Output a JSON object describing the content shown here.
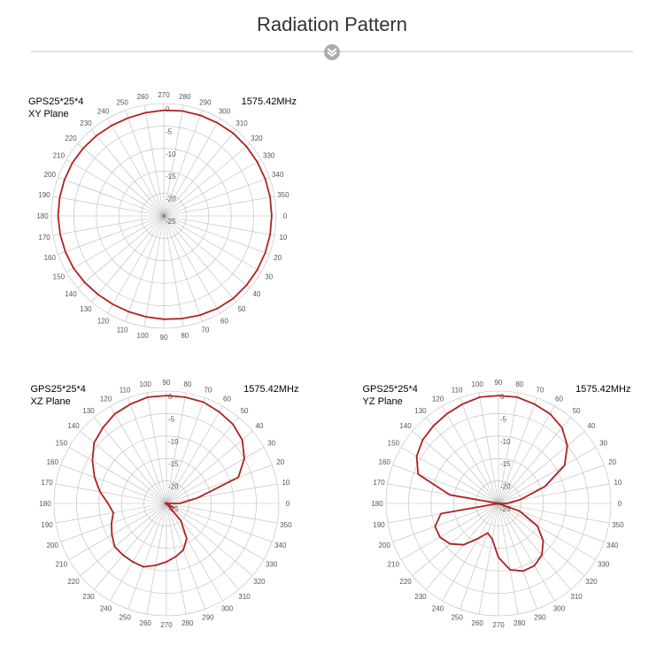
{
  "title": "Radiation Pattern",
  "common": {
    "antenna": "GPS25*25*4",
    "frequency": "1575.42MHz",
    "radial_ticks": [
      0,
      -5,
      -10,
      -15,
      -20,
      -25
    ],
    "radial_min": -25,
    "radial_max": 0,
    "angle_step": 10,
    "angle_labels_step": 10,
    "line_color": "#b02020",
    "line_width": 1.8,
    "grid_color": "#bbbbbb",
    "grid_width": 0.6,
    "bg_color": "#ffffff",
    "label_fontsize": 8,
    "tick_fontsize": 8
  },
  "charts": [
    {
      "plane": "XY Plane",
      "size": 310,
      "angle_zero_at": 270,
      "angle_direction": "ccw",
      "data": [
        [
          0,
          -1
        ],
        [
          10,
          -1
        ],
        [
          20,
          -1
        ],
        [
          30,
          -1
        ],
        [
          40,
          -1
        ],
        [
          50,
          -1
        ],
        [
          60,
          -1.2
        ],
        [
          70,
          -1.5
        ],
        [
          80,
          -1.8
        ],
        [
          90,
          -2
        ],
        [
          100,
          -2.2
        ],
        [
          110,
          -2.3
        ],
        [
          120,
          -2.3
        ],
        [
          130,
          -2.2
        ],
        [
          140,
          -2
        ],
        [
          150,
          -1.8
        ],
        [
          160,
          -1.7
        ],
        [
          170,
          -1.6
        ],
        [
          180,
          -1.5
        ],
        [
          190,
          -1.5
        ],
        [
          200,
          -1.5
        ],
        [
          210,
          -1.5
        ],
        [
          220,
          -1.6
        ],
        [
          230,
          -1.7
        ],
        [
          240,
          -1.8
        ],
        [
          250,
          -1.8
        ],
        [
          260,
          -1.7
        ],
        [
          270,
          -1.5
        ],
        [
          280,
          -1.3
        ],
        [
          290,
          -1.2
        ],
        [
          300,
          -1.1
        ],
        [
          310,
          -1
        ],
        [
          320,
          -1
        ],
        [
          330,
          -1
        ],
        [
          340,
          -1
        ],
        [
          350,
          -1
        ],
        [
          360,
          -1
        ]
      ]
    },
    {
      "plane": "XZ Plane",
      "size": 310,
      "angle_zero_at": 90,
      "angle_direction": "ccw",
      "data": [
        [
          0,
          -22
        ],
        [
          10,
          -18
        ],
        [
          20,
          -8
        ],
        [
          30,
          -5
        ],
        [
          40,
          -3
        ],
        [
          50,
          -2
        ],
        [
          60,
          -1.5
        ],
        [
          70,
          -1
        ],
        [
          80,
          -1
        ],
        [
          90,
          -1
        ],
        [
          100,
          -1
        ],
        [
          110,
          -1.5
        ],
        [
          120,
          -2
        ],
        [
          130,
          -3
        ],
        [
          140,
          -4
        ],
        [
          150,
          -6
        ],
        [
          160,
          -8
        ],
        [
          170,
          -10
        ],
        [
          180,
          -12
        ],
        [
          190,
          -13
        ],
        [
          200,
          -12
        ],
        [
          210,
          -11
        ],
        [
          220,
          -10
        ],
        [
          230,
          -10
        ],
        [
          240,
          -10
        ],
        [
          250,
          -10
        ],
        [
          260,
          -11
        ],
        [
          270,
          -12
        ],
        [
          280,
          -13
        ],
        [
          290,
          -14
        ],
        [
          300,
          -16
        ],
        [
          310,
          -20
        ],
        [
          320,
          -25
        ],
        [
          330,
          -23
        ],
        [
          340,
          -25
        ],
        [
          350,
          -25
        ],
        [
          360,
          -22
        ]
      ]
    },
    {
      "plane": "YZ Plane",
      "size": 310,
      "angle_zero_at": 90,
      "angle_direction": "ccw",
      "data": [
        [
          0,
          -23
        ],
        [
          10,
          -20
        ],
        [
          20,
          -14
        ],
        [
          30,
          -8
        ],
        [
          40,
          -5
        ],
        [
          50,
          -3
        ],
        [
          60,
          -2
        ],
        [
          70,
          -1.5
        ],
        [
          80,
          -1
        ],
        [
          90,
          -1
        ],
        [
          100,
          -1
        ],
        [
          110,
          -1.5
        ],
        [
          120,
          -2
        ],
        [
          130,
          -2.5
        ],
        [
          140,
          -3
        ],
        [
          150,
          -4
        ],
        [
          160,
          -6
        ],
        [
          170,
          -14
        ],
        [
          180,
          -25
        ],
        [
          190,
          -12
        ],
        [
          200,
          -10
        ],
        [
          210,
          -10
        ],
        [
          220,
          -11
        ],
        [
          230,
          -13
        ],
        [
          240,
          -16
        ],
        [
          250,
          -18
        ],
        [
          260,
          -17
        ],
        [
          270,
          -13
        ],
        [
          280,
          -10
        ],
        [
          290,
          -9
        ],
        [
          300,
          -9
        ],
        [
          310,
          -10
        ],
        [
          320,
          -12
        ],
        [
          330,
          -15
        ],
        [
          340,
          -20
        ],
        [
          350,
          -25
        ],
        [
          360,
          -23
        ]
      ]
    }
  ]
}
